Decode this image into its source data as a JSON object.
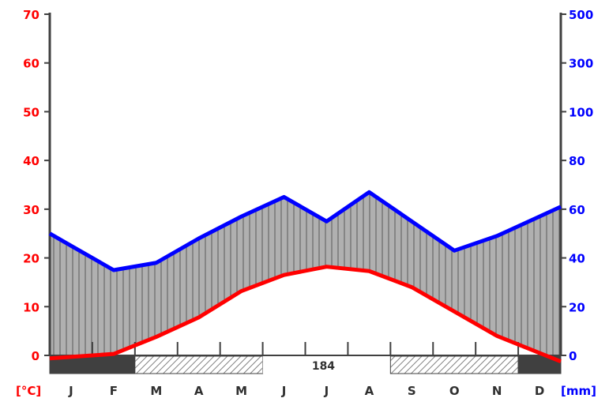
{
  "chart_data": {
    "type": "line",
    "title": "",
    "categories": [
      "J",
      "F",
      "M",
      "A",
      "M",
      "J",
      "J",
      "A",
      "S",
      "O",
      "N",
      "D"
    ],
    "series": [
      {
        "name": "",
        "axis": "left",
        "unit": "°C",
        "color": "#ff0000",
        "values": [
          -0.3,
          0.3,
          3.8,
          7.8,
          13.2,
          16.5,
          18.2,
          17.3,
          14.0,
          9.0,
          4.0,
          0.5
        ],
        "x_pos": [
          0.5,
          1.5,
          2.5,
          3.5,
          4.5,
          5.5,
          6.5,
          7.5,
          8.5,
          9.5,
          10.5,
          11.5
        ]
      },
      {
        "name": "",
        "axis": "right",
        "unit": "mm",
        "color": "#0000ff",
        "values": [
          45,
          35,
          38,
          48,
          57,
          65,
          55,
          67,
          55,
          43,
          49,
          57
        ],
        "x_pos": [
          0.5,
          1.5,
          2.5,
          3.5,
          4.5,
          5.5,
          6.5,
          7.5,
          8.5,
          9.5,
          10.5,
          11.5
        ]
      }
    ],
    "left_axis": {
      "label": "[°C]",
      "ticks": [
        "0",
        "10",
        "20",
        "30",
        "40",
        "50",
        "60",
        "70"
      ],
      "ylim": [
        0,
        70
      ]
    },
    "right_axis": {
      "label": "[mm]",
      "ticks": [
        "0",
        "20",
        "40",
        "60",
        "80",
        "100",
        "300",
        "500"
      ]
    },
    "frost": {
      "label": "184",
      "bands": [
        {
          "type": "certain",
          "start": 0,
          "end": 2
        },
        {
          "type": "possible",
          "start": 2,
          "end": 5
        },
        {
          "type": "none",
          "start": 5,
          "end": 8
        },
        {
          "type": "possible",
          "start": 8,
          "end": 11
        },
        {
          "type": "certain",
          "start": 11,
          "end": 12
        }
      ]
    },
    "colors": {
      "temperature": "#ff0000",
      "precipitation": "#0000ff",
      "humid_fill": "#b0b0b0",
      "frost_certain": "#404040"
    },
    "grid": false
  }
}
